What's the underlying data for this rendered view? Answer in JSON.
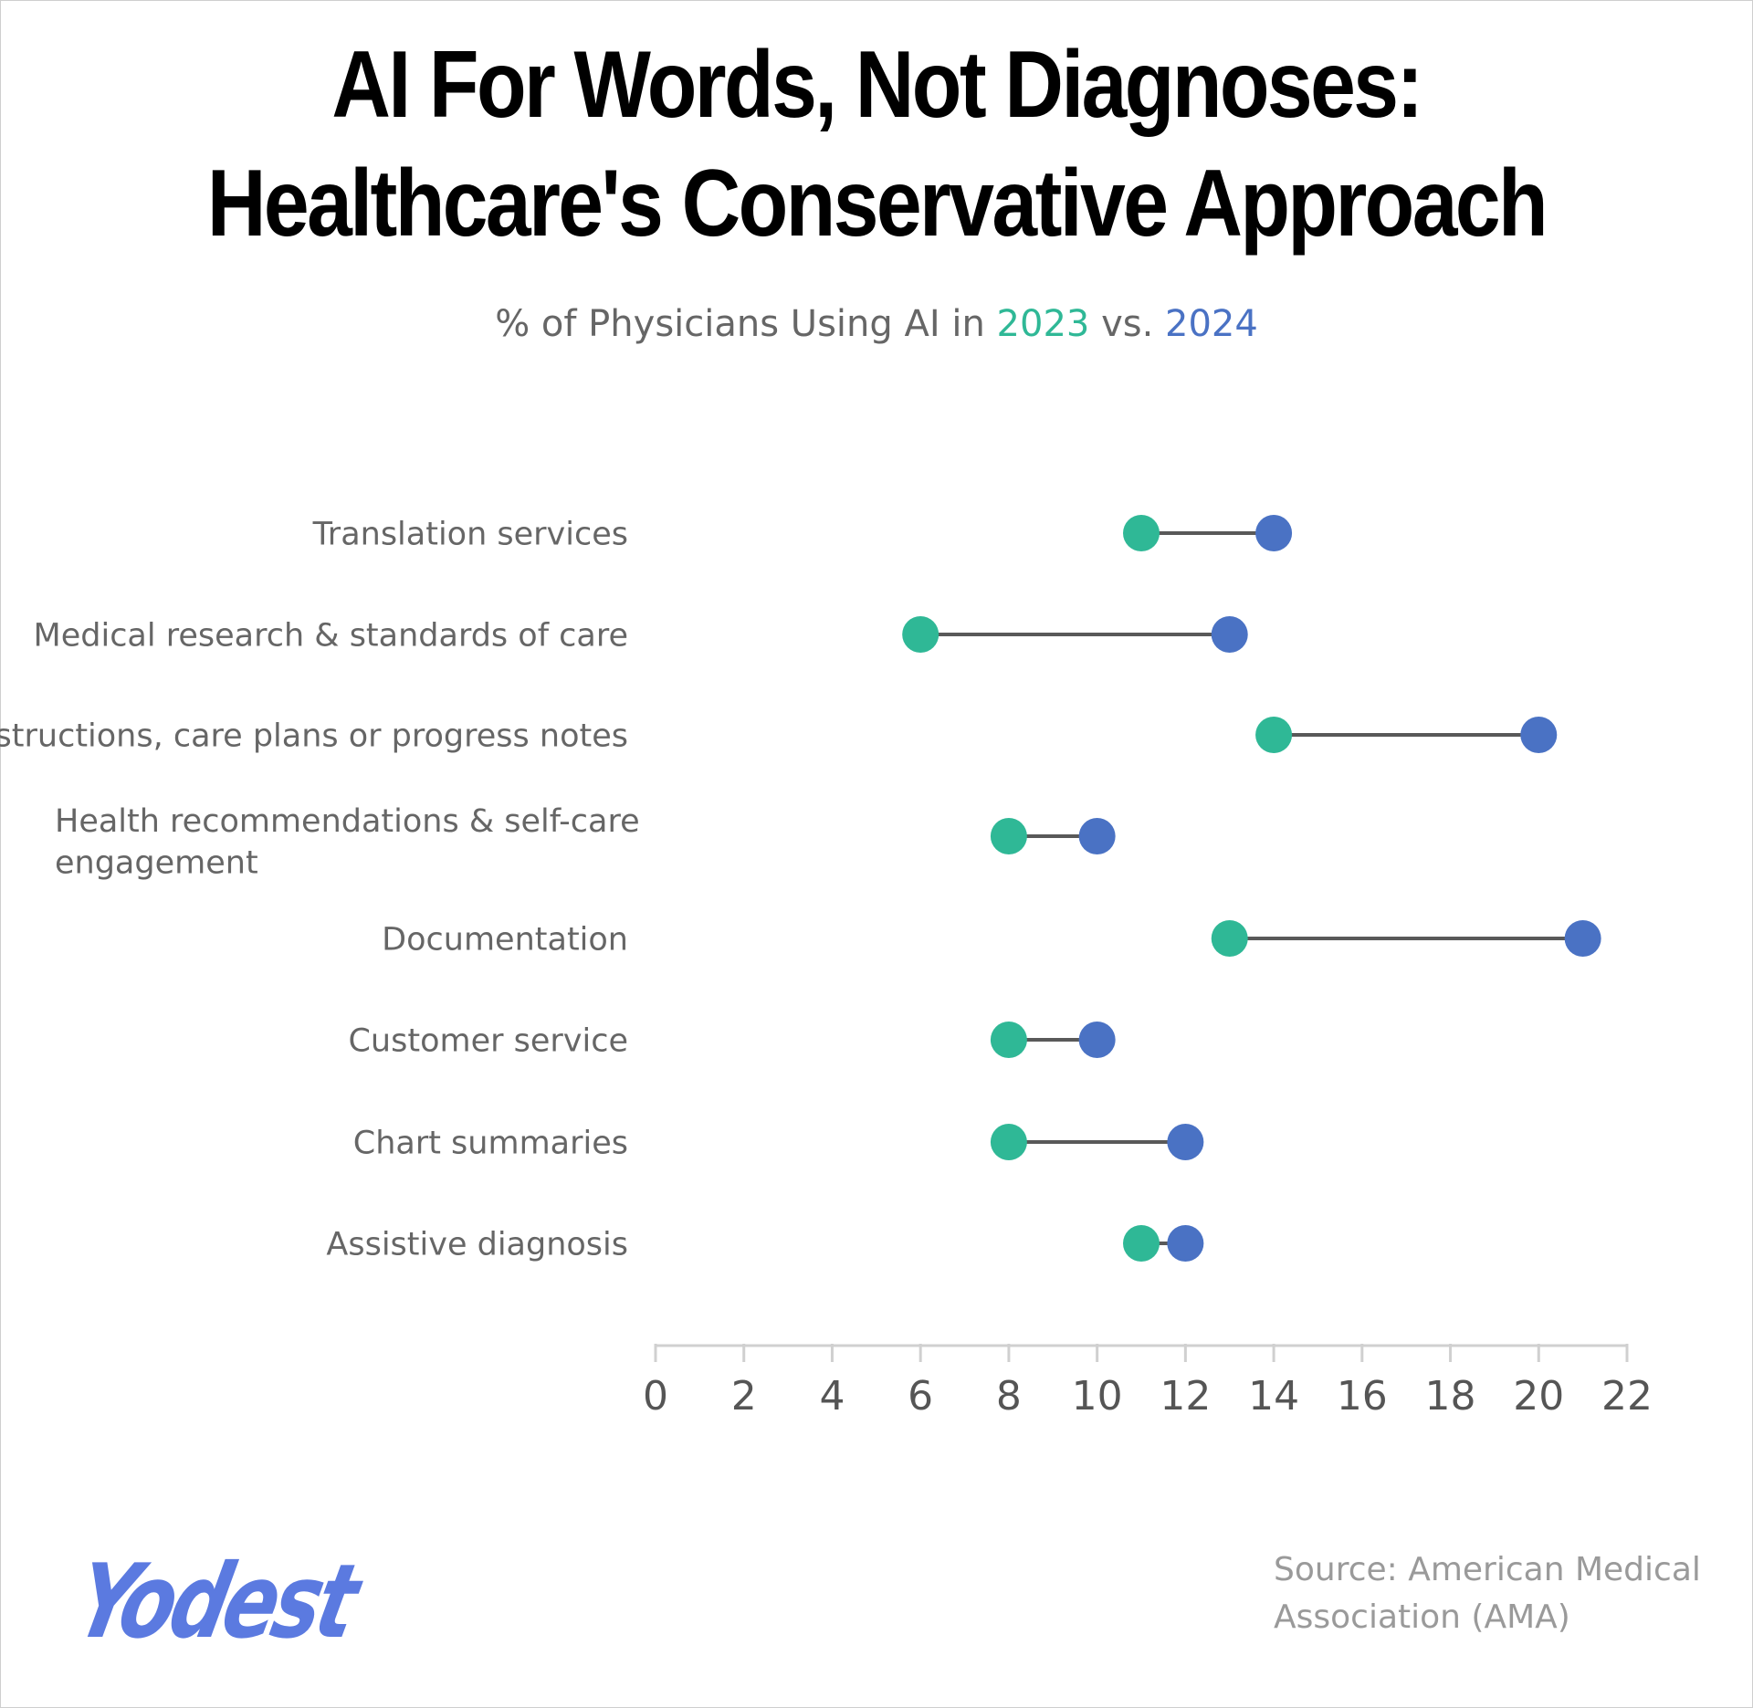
{
  "title": "AI For Words, Not Diagnoses: Healthcare's Conservative Approach",
  "subtitle": {
    "prefix": "% of Physicians Using AI in",
    "year_a": "2023",
    "connector": "vs.",
    "year_b": "2024"
  },
  "source": "Source: American Medical Association (AMA)",
  "logo_text": "Yodest",
  "colors": {
    "series_2023": "#2fb896",
    "series_2024": "#4a72c4",
    "connector": "#595959",
    "axis": "#d0d0d0",
    "label_text": "#666666"
  },
  "chart_data": {
    "type": "dumbbell",
    "title": "AI For Words, Not Diagnoses: Healthcare's Conservative Approach",
    "subtitle": "% of Physicians Using AI in 2023 vs. 2024",
    "categories": [
      "Translation services",
      "Medical research & standards of care",
      "Instructions, care plans or progress notes",
      "Health recommendations & self-care engagement",
      "Documentation",
      "Customer service",
      "Chart summaries",
      "Assistive diagnosis"
    ],
    "series": [
      {
        "name": "2023",
        "values": [
          11,
          6,
          14,
          8,
          13,
          8,
          8,
          11
        ]
      },
      {
        "name": "2024",
        "values": [
          14,
          13,
          20,
          10,
          21,
          10,
          12,
          12
        ]
      }
    ],
    "xlim": [
      0,
      22
    ],
    "xticks": [
      0,
      2,
      4,
      6,
      8,
      10,
      12,
      14,
      16,
      18,
      20,
      22
    ],
    "xlabel": "",
    "ylabel": "",
    "grid": false,
    "legend": "subtitle"
  }
}
